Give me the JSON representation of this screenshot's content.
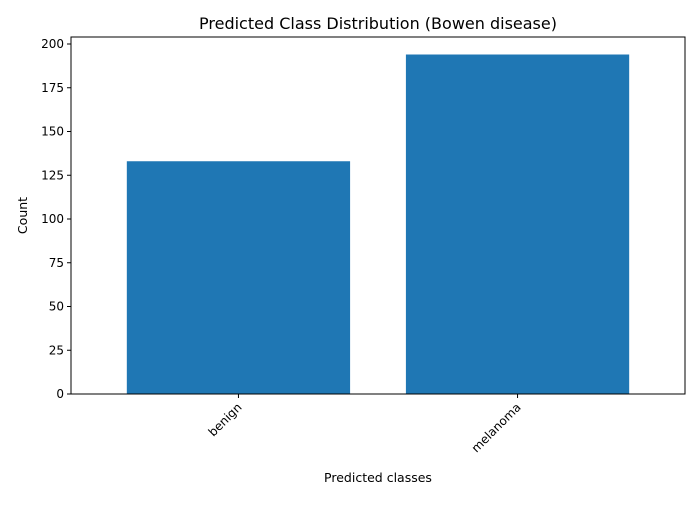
{
  "chart_data": {
    "type": "bar",
    "title": "Predicted Class Distribution (Bowen disease)",
    "xlabel": "Predicted classes",
    "ylabel": "Count",
    "categories": [
      "benign",
      "melanoma"
    ],
    "values": [
      133,
      194
    ],
    "ylim": [
      0,
      204
    ],
    "yticks": [
      0,
      25,
      50,
      75,
      100,
      125,
      150,
      175,
      200
    ],
    "ytick_labels": [
      "0",
      "25",
      "50",
      "75",
      "100",
      "125",
      "150",
      "175",
      "200"
    ],
    "xtick_rotation_deg": 45,
    "grid": false,
    "legend": "none",
    "bar_color": "#1f77b4"
  }
}
